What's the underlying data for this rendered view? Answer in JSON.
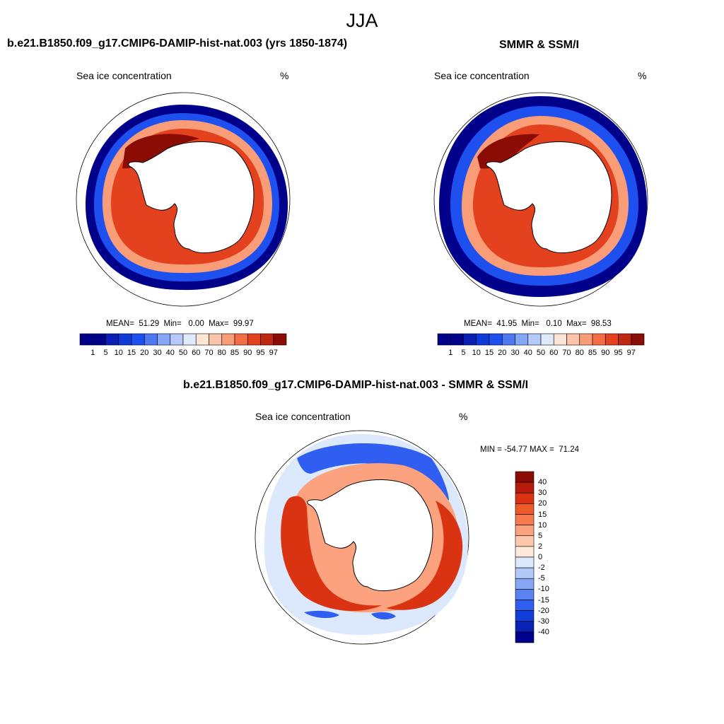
{
  "season": "JJA",
  "panels": [
    {
      "id": "model",
      "title": "b.e21.B1850.f09_g17.CMIP6-DAMIP-hist-nat.003 (yrs 1850-1874)",
      "variable": "Sea ice concentration",
      "units": "%",
      "stats": {
        "mean": "51.29",
        "min": "0.00",
        "max": "99.97"
      },
      "stats_text": "MEAN=  51.29  Min=   0.00  Max=  99.97"
    },
    {
      "id": "obs",
      "title": "SMMR & SSM/I",
      "variable": "Sea ice concentration",
      "units": "%",
      "stats": {
        "mean": "41.95",
        "min": "0.10",
        "max": "98.53"
      },
      "stats_text": "MEAN=  41.95  Min=   0.10  Max=  98.53"
    },
    {
      "id": "diff",
      "title": "b.e21.B1850.f09_g17.CMIP6-DAMIP-hist-nat.003 - SMMR & SSM/I",
      "variable": "Sea ice concentration",
      "units": "%",
      "stats": {
        "min": "-54.77",
        "max": "71.24"
      },
      "stats_text": "MIN = -54.77 MAX =  71.24"
    }
  ],
  "colorbar_conc": {
    "levels": [
      "1",
      "5",
      "10",
      "15",
      "20",
      "30",
      "40",
      "50",
      "60",
      "70",
      "80",
      "85",
      "90",
      "95",
      "97"
    ],
    "colors": [
      "#00008b",
      "#0a20b4",
      "#0f3ad8",
      "#1e50f0",
      "#4f78f0",
      "#85a5f5",
      "#b4c8fa",
      "#dfe9fc",
      "#fde6d8",
      "#fcc4a8",
      "#f99c78",
      "#f26d45",
      "#e4421f",
      "#c02610",
      "#8a0c05"
    ]
  },
  "colorbar_diff": {
    "levels": [
      "40",
      "30",
      "20",
      "15",
      "10",
      "5",
      "2",
      "0",
      "-2",
      "-5",
      "-10",
      "-15",
      "-20",
      "-30",
      "-40"
    ],
    "colors": [
      "#8a0c05",
      "#b51a0b",
      "#d93312",
      "#f05a28",
      "#f77b4d",
      "#fca27e",
      "#fdc8ab",
      "#fee8dc",
      "#dce8fb",
      "#b3c9f8",
      "#86a6f4",
      "#5b82f0",
      "#2f5ef0",
      "#143ed8",
      "#0a22b4",
      "#00008b"
    ]
  },
  "map_colors": {
    "coastline": "#000000",
    "land": "#ffffff",
    "ice_high": "#8a0c05",
    "ice_mid": "#e4421f",
    "ice_low": "#f99c78",
    "edge": "#1e50f0",
    "edge_outer": "#00008b",
    "diff_pos": "#d93312",
    "diff_pos_light": "#fca27e",
    "diff_neg": "#2f5ef0",
    "diff_neg_light": "#dce8fb"
  }
}
